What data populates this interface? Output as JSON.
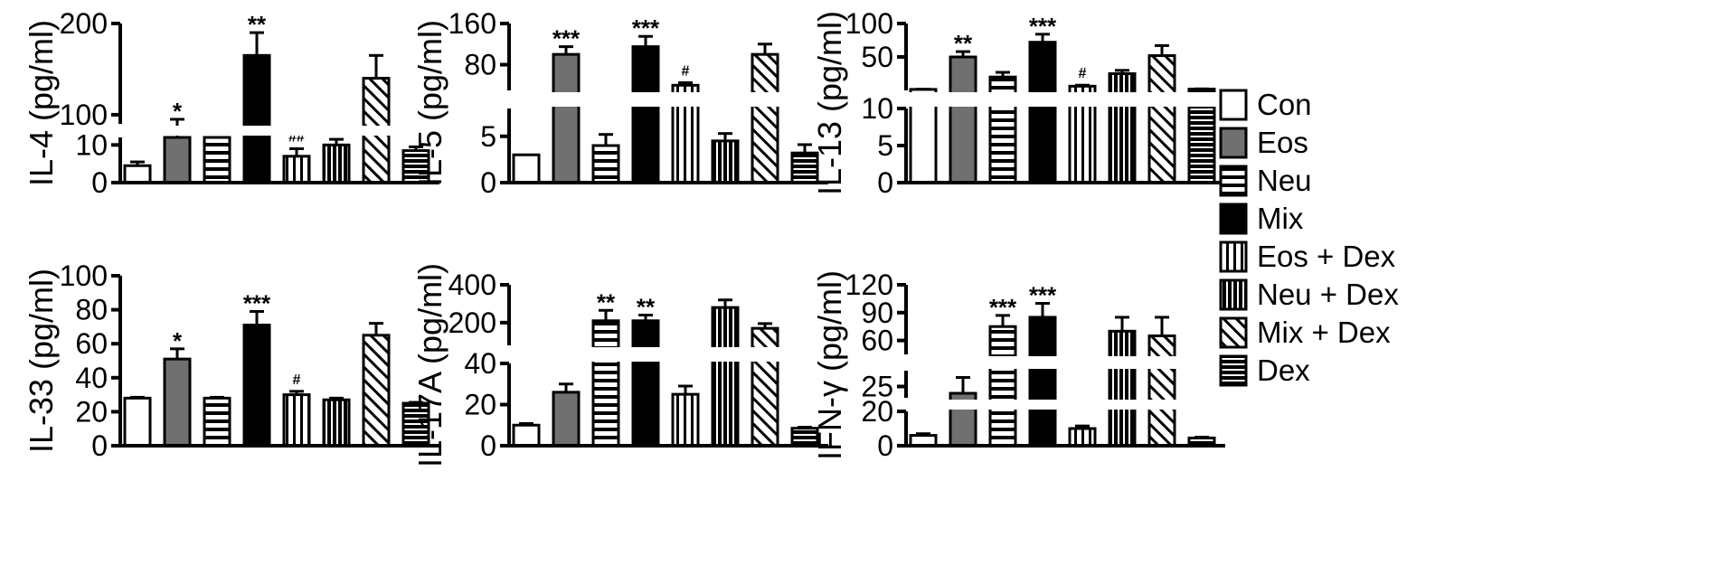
{
  "legend": [
    {
      "name": "Con",
      "pattern": "white"
    },
    {
      "name": "Eos",
      "pattern": "gray"
    },
    {
      "name": "Neu",
      "pattern": "hstripe"
    },
    {
      "name": "Mix",
      "pattern": "black"
    },
    {
      "name": "Eos + Dex",
      "pattern": "vstripe"
    },
    {
      "name": "Neu + Dex",
      "pattern": "vstripe-dark"
    },
    {
      "name": "Mix + Dex",
      "pattern": "diag"
    },
    {
      "name": "Dex",
      "pattern": "hstripe-dark"
    }
  ],
  "colors": {
    "eos_gray": "#707070",
    "black": "#000000",
    "white": "#ffffff",
    "stripe_bg": "#ffffff"
  },
  "chart_data": [
    {
      "type": "bar",
      "ylabel": "IL-4 (pg/ml)",
      "categories": [
        "Con",
        "Eos",
        "Neu",
        "Mix",
        "Eos + Dex",
        "Neu + Dex",
        "Mix + Dex",
        "Dex"
      ],
      "values": [
        4.5,
        85,
        12,
        165,
        7,
        10,
        140,
        8.5
      ],
      "errors": [
        1,
        10,
        1,
        25,
        2,
        1.5,
        25,
        1
      ],
      "significance": [
        "",
        "*",
        "",
        "**",
        "##",
        "",
        "",
        ""
      ],
      "segments": [
        {
          "range": [
            0,
            12
          ],
          "ticks": [
            0,
            10
          ],
          "tick_labels": [
            "0",
            "10"
          ]
        },
        {
          "range": [
            90,
            200
          ],
          "ticks": [
            100,
            200
          ],
          "tick_labels": [
            "100",
            "200"
          ]
        }
      ]
    },
    {
      "type": "bar",
      "ylabel": "IL-5 (pg/ml)",
      "categories": [
        "Con",
        "Eos",
        "Neu",
        "Mix",
        "Eos + Dex",
        "Neu + Dex",
        "Mix + Dex",
        "Dex"
      ],
      "values": [
        3,
        100,
        4,
        115,
        40,
        4.5,
        100,
        3.2
      ],
      "errors": [
        0.1,
        15,
        1.2,
        20,
        5,
        0.8,
        20,
        0.9
      ],
      "significance": [
        "",
        "***",
        "",
        "***",
        "#",
        "",
        "",
        ""
      ],
      "segments": [
        {
          "range": [
            0,
            8
          ],
          "ticks": [
            0,
            5
          ],
          "tick_labels": [
            "0",
            "5"
          ]
        },
        {
          "range": [
            30,
            160
          ],
          "ticks": [
            80,
            160
          ],
          "tick_labels": [
            "80",
            "160"
          ]
        }
      ]
    },
    {
      "type": "bar",
      "ylabel": "IL-13 (pg/ml)",
      "categories": [
        "Con",
        "Eos",
        "Neu",
        "Mix",
        "Eos + Dex",
        "Neu + Dex",
        "Mix + Dex",
        "Dex"
      ],
      "values": [
        1.5,
        50,
        20,
        72,
        6.3,
        25,
        52,
        2
      ],
      "errors": [
        0.3,
        8,
        7,
        12,
        1.5,
        5,
        15,
        0.3
      ],
      "significance": [
        "",
        "**",
        "",
        "***",
        "#",
        "",
        "",
        ""
      ],
      "segments": [
        {
          "range": [
            0,
            10
          ],
          "ticks": [
            0,
            5,
            10
          ],
          "tick_labels": [
            "0",
            "5",
            "10"
          ]
        },
        {
          "range": [
            0,
            100
          ],
          "ticks": [
            50,
            100
          ],
          "tick_labels": [
            "50",
            "100"
          ]
        }
      ]
    },
    {
      "type": "bar",
      "ylabel": "IL-33 (pg/ml)",
      "categories": [
        "Con",
        "Eos",
        "Neu",
        "Mix",
        "Eos + Dex",
        "Neu + Dex",
        "Mix + Dex",
        "Dex"
      ],
      "values": [
        28,
        51,
        28,
        71,
        30,
        27,
        65,
        25
      ],
      "errors": [
        0.5,
        6,
        0.5,
        8,
        2,
        1,
        7,
        0.5
      ],
      "significance": [
        "",
        "*",
        "",
        "***",
        "#",
        "",
        "",
        ""
      ],
      "segments": [
        {
          "range": [
            0,
            100
          ],
          "ticks": [
            0,
            20,
            40,
            60,
            80,
            100
          ],
          "tick_labels": [
            "0",
            "20",
            "40",
            "60",
            "80",
            "100"
          ]
        }
      ]
    },
    {
      "type": "bar",
      "ylabel": "IL-17A (pg/ml)",
      "categories": [
        "Con",
        "Eos",
        "Neu",
        "Mix",
        "Eos + Dex",
        "Neu + Dex",
        "Mix + Dex",
        "Dex"
      ],
      "values": [
        10,
        26,
        210,
        210,
        25,
        280,
        170,
        8.5
      ],
      "errors": [
        0.8,
        4,
        55,
        30,
        4,
        40,
        25,
        0.5
      ],
      "significance": [
        "",
        "",
        "**",
        "**",
        "",
        "",
        "",
        ""
      ],
      "segments": [
        {
          "range": [
            0,
            40
          ],
          "ticks": [
            0,
            20,
            40
          ],
          "tick_labels": [
            "0",
            "20",
            "40"
          ]
        },
        {
          "range": [
            80,
            400
          ],
          "ticks": [
            200,
            400
          ],
          "tick_labels": [
            "200",
            "400"
          ]
        }
      ]
    },
    {
      "type": "bar",
      "ylabel": "IFN-γ (pg/ml)",
      "categories": [
        "Con",
        "Eos",
        "Neu",
        "Mix",
        "Eos + Dex",
        "Neu + Dex",
        "Mix + Dex",
        "Dex"
      ],
      "values": [
        6,
        22,
        75,
        85,
        10,
        70,
        65,
        4.5
      ],
      "errors": [
        1,
        7,
        12,
        15,
        1.5,
        15,
        20,
        0.5
      ],
      "significance": [
        "",
        "",
        "***",
        "***",
        "",
        "",
        "",
        ""
      ],
      "segments": [
        {
          "range": [
            0,
            20
          ],
          "ticks": [
            0,
            20
          ],
          "tick_labels": [
            "0",
            "20"
          ]
        },
        {
          "range": [
            20,
            32
          ],
          "ticks": [
            25
          ],
          "tick_labels": [
            "25"
          ]
        },
        {
          "range": [
            45,
            120
          ],
          "ticks": [
            60,
            90,
            120
          ],
          "tick_labels": [
            "60",
            "90",
            "120"
          ]
        }
      ]
    }
  ]
}
